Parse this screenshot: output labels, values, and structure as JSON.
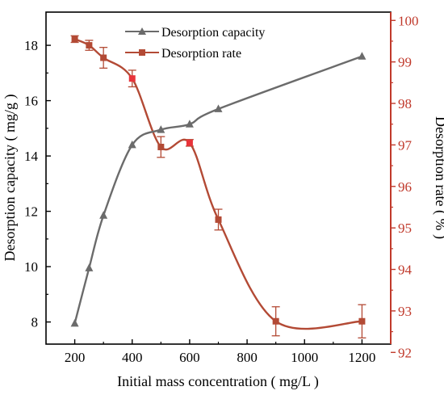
{
  "chart_data": {
    "type": "line",
    "title": "",
    "xlabel": "Initial mass concentration ( mg/L )",
    "ylabel_left": "Desorption capacity ( mg/g )",
    "ylabel_right": "Desorption rate ( % )",
    "xlim": [
      100,
      1300
    ],
    "ylim_left": [
      7.2,
      19.2
    ],
    "ylim_right": [
      92.2,
      100.2
    ],
    "x_ticks": [
      200,
      400,
      600,
      800,
      1000,
      1200
    ],
    "y_left_ticks": [
      8,
      10,
      12,
      14,
      16,
      18
    ],
    "y_right_ticks": [
      92,
      93,
      94,
      95,
      96,
      97,
      98,
      99,
      100
    ],
    "grid": false,
    "legend_position": "top-center",
    "colors": {
      "capacity": "#6b6b6b",
      "rate": "#b34a35",
      "rate_marker_alt": "#e8333a",
      "right_axis": "#c0392b"
    },
    "series": [
      {
        "name": "Desorption capacity",
        "axis": "left",
        "marker": "triangle",
        "x": [
          200,
          250,
          300,
          400,
          500,
          600,
          700,
          1200
        ],
        "y": [
          7.95,
          9.95,
          11.85,
          14.4,
          14.95,
          15.15,
          15.7,
          17.6
        ]
      },
      {
        "name": "Desorption rate",
        "axis": "right",
        "marker": "square",
        "x": [
          200,
          250,
          300,
          400,
          500,
          600,
          700,
          900,
          1200
        ],
        "y": [
          99.55,
          99.4,
          99.1,
          98.6,
          96.95,
          97.05,
          95.2,
          92.75,
          92.75
        ],
        "error": [
          0.08,
          0.12,
          0.25,
          0.2,
          0.25,
          0.08,
          0.25,
          0.35,
          0.4
        ]
      }
    ]
  }
}
